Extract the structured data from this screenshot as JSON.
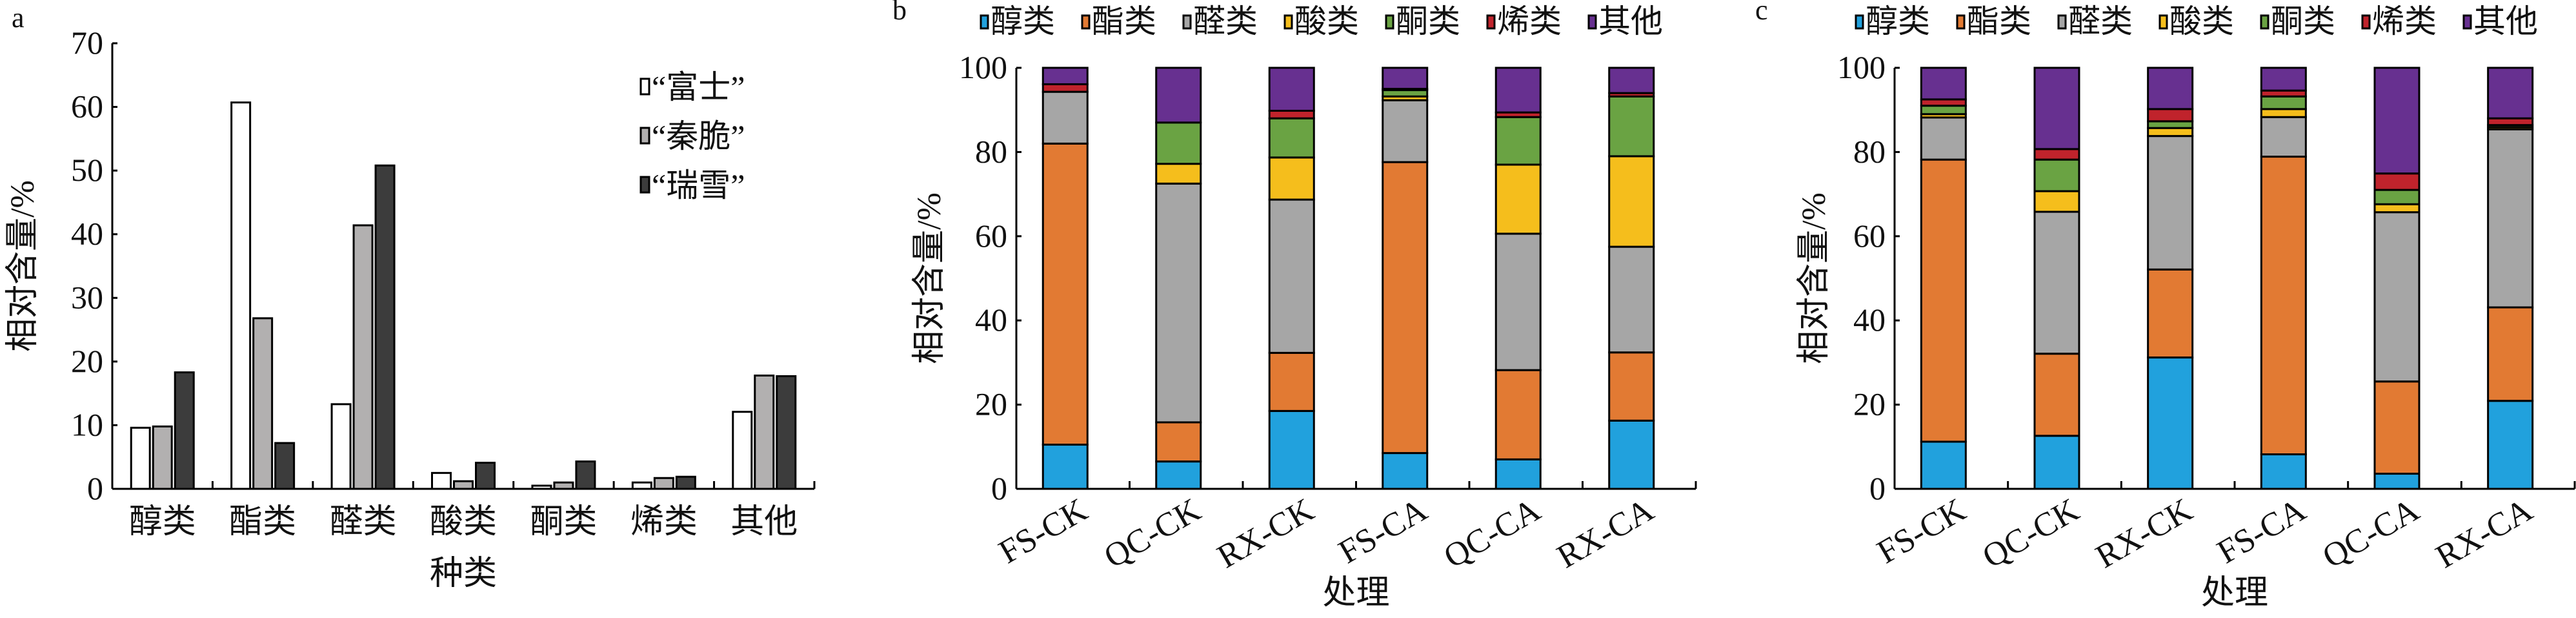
{
  "colors": {
    "series_a": [
      "#ffffff",
      "#b2b0b0",
      "#3c3c3c"
    ],
    "stack": [
      "#21a1dd",
      "#e27a33",
      "#a6a6a6",
      "#f5be1c",
      "#6aa343",
      "#c0232c",
      "#673090"
    ]
  },
  "chart_data": [
    {
      "panel": "a",
      "type": "bar",
      "title": "",
      "xlabel": "种类",
      "ylabel": "相对含量/%",
      "ylim": [
        0,
        70
      ],
      "yticks": [
        "0",
        "10",
        "20",
        "30",
        "40",
        "50",
        "60",
        "70"
      ],
      "categories": [
        "醇类",
        "酯类",
        "醛类",
        "酸类",
        "酮类",
        "烯类",
        "其他"
      ],
      "legend_position": "top-right",
      "series": [
        {
          "name": "“富士”",
          "values": [
            9.6,
            60.7,
            13.3,
            2.5,
            0.5,
            1.0,
            12.1
          ]
        },
        {
          "name": "“秦脆”",
          "values": [
            9.8,
            26.8,
            41.4,
            1.2,
            1.0,
            1.7,
            17.8
          ]
        },
        {
          "name": "“瑞雪”",
          "values": [
            18.3,
            7.2,
            50.8,
            4.1,
            4.3,
            1.9,
            17.7
          ]
        }
      ]
    },
    {
      "panel": "b",
      "type": "bar",
      "stacked": true,
      "xlabel": "处理",
      "ylabel": "相对含量/%",
      "ylim": [
        0,
        100
      ],
      "yticks": [
        "0",
        "20",
        "40",
        "60",
        "80",
        "100"
      ],
      "categories": [
        "FS-CK",
        "QC-CK",
        "RX-CK",
        "FS-CA",
        "QC-CA",
        "RX-CA"
      ],
      "legend_position": "top",
      "series": [
        {
          "name": "醇类",
          "values": [
            10.5,
            6.5,
            18.5,
            8.5,
            7.0,
            16.2
          ]
        },
        {
          "name": "酯类",
          "values": [
            71.5,
            9.3,
            13.8,
            69.1,
            21.2,
            16.2
          ]
        },
        {
          "name": "醛类",
          "values": [
            12.3,
            56.7,
            36.4,
            14.7,
            32.4,
            25.1
          ]
        },
        {
          "name": "酸类",
          "values": [
            0,
            4.7,
            10.0,
            0.9,
            16.4,
            21.5
          ]
        },
        {
          "name": "酮类",
          "values": [
            0,
            9.8,
            9.3,
            1.5,
            11.3,
            14.2
          ]
        },
        {
          "name": "烯类",
          "values": [
            1.8,
            0,
            1.8,
            0.3,
            1.1,
            0.8
          ]
        },
        {
          "name": "其他",
          "values": [
            3.9,
            13.0,
            10.2,
            5.0,
            10.6,
            6.0
          ]
        }
      ]
    },
    {
      "panel": "c",
      "type": "bar",
      "stacked": true,
      "xlabel": "处理",
      "ylabel": "相对含量/%",
      "ylim": [
        0,
        100
      ],
      "yticks": [
        "0",
        "20",
        "40",
        "60",
        "80",
        "100"
      ],
      "categories": [
        "FS-CK",
        "QC-CK",
        "RX-CK",
        "FS-CA",
        "QC-CA",
        "RX-CA"
      ],
      "legend_position": "top",
      "series": [
        {
          "name": "醇类",
          "values": [
            11.2,
            12.6,
            31.2,
            8.2,
            3.6,
            20.9
          ]
        },
        {
          "name": "酯类",
          "values": [
            67.0,
            19.5,
            20.9,
            70.7,
            21.9,
            22.2
          ]
        },
        {
          "name": "醛类",
          "values": [
            10.0,
            33.7,
            31.7,
            9.4,
            40.2,
            42.3
          ]
        },
        {
          "name": "酸类",
          "values": [
            0.8,
            4.9,
            1.9,
            1.9,
            1.9,
            0.5
          ]
        },
        {
          "name": "酮类",
          "values": [
            2.0,
            7.5,
            1.6,
            3.0,
            3.4,
            0.5
          ]
        },
        {
          "name": "烯类",
          "values": [
            1.5,
            2.5,
            2.9,
            1.4,
            3.9,
            1.6
          ]
        },
        {
          "name": "其他",
          "values": [
            7.5,
            19.3,
            9.8,
            5.4,
            25.1,
            12.0
          ]
        }
      ]
    }
  ]
}
